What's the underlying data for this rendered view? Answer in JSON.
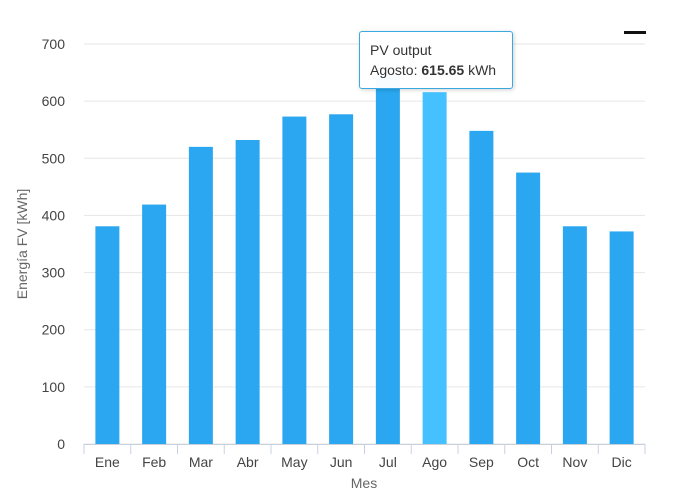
{
  "chart_data": {
    "type": "bar",
    "categories": [
      "Ene",
      "Feb",
      "Mar",
      "Abr",
      "May",
      "Jun",
      "Jul",
      "Ago",
      "Sep",
      "Oct",
      "Nov",
      "Dic"
    ],
    "series": [
      {
        "name": "PV output",
        "values": [
          381,
          419,
          520,
          532,
          573,
          577,
          645,
          615.65,
          548,
          475,
          381,
          372
        ]
      }
    ],
    "xlabel": "Mes",
    "ylabel": "Energía FV [kWh]",
    "ylim": [
      0,
      700
    ],
    "yticks": [
      "0",
      "100",
      "200",
      "300",
      "400",
      "500",
      "600",
      "700"
    ],
    "grid": true,
    "highlight_index": 7,
    "bar_color": "#2aa7f0",
    "highlight_color": "#45c1ff",
    "tooltip": {
      "title": "PV output",
      "label": "Agosto:",
      "value": "615.65",
      "unit": "kWh"
    }
  },
  "icons": {
    "menu": "menu-icon"
  }
}
